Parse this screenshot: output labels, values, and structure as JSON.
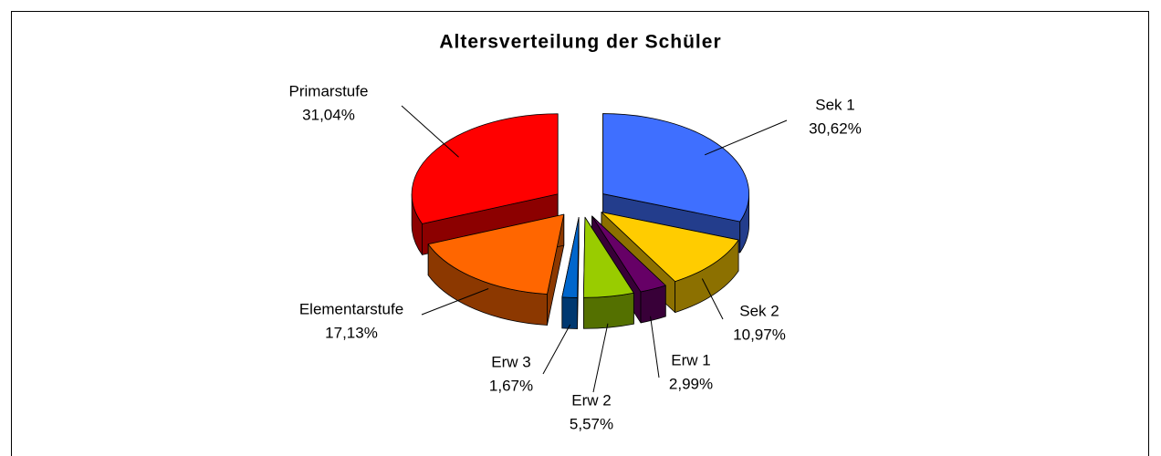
{
  "chart_data": {
    "type": "pie3d",
    "title": "Altersverteilung der Schüler",
    "categories": [
      "Sek 1",
      "Sek 2",
      "Erw 1",
      "Erw 2",
      "Erw 3",
      "Elementarstufe",
      "Primarstufe"
    ],
    "values": [
      30.62,
      10.97,
      2.99,
      5.57,
      1.67,
      17.13,
      31.04
    ],
    "value_labels": [
      "30,62%",
      "10,97%",
      "2,99%",
      "5,57%",
      "1,67%",
      "17,13%",
      "31,04%"
    ],
    "colors": [
      "#3f6fff",
      "#ffcc00",
      "#660066",
      "#99cc00",
      "#0066cc",
      "#ff6600",
      "#ff0000"
    ]
  }
}
